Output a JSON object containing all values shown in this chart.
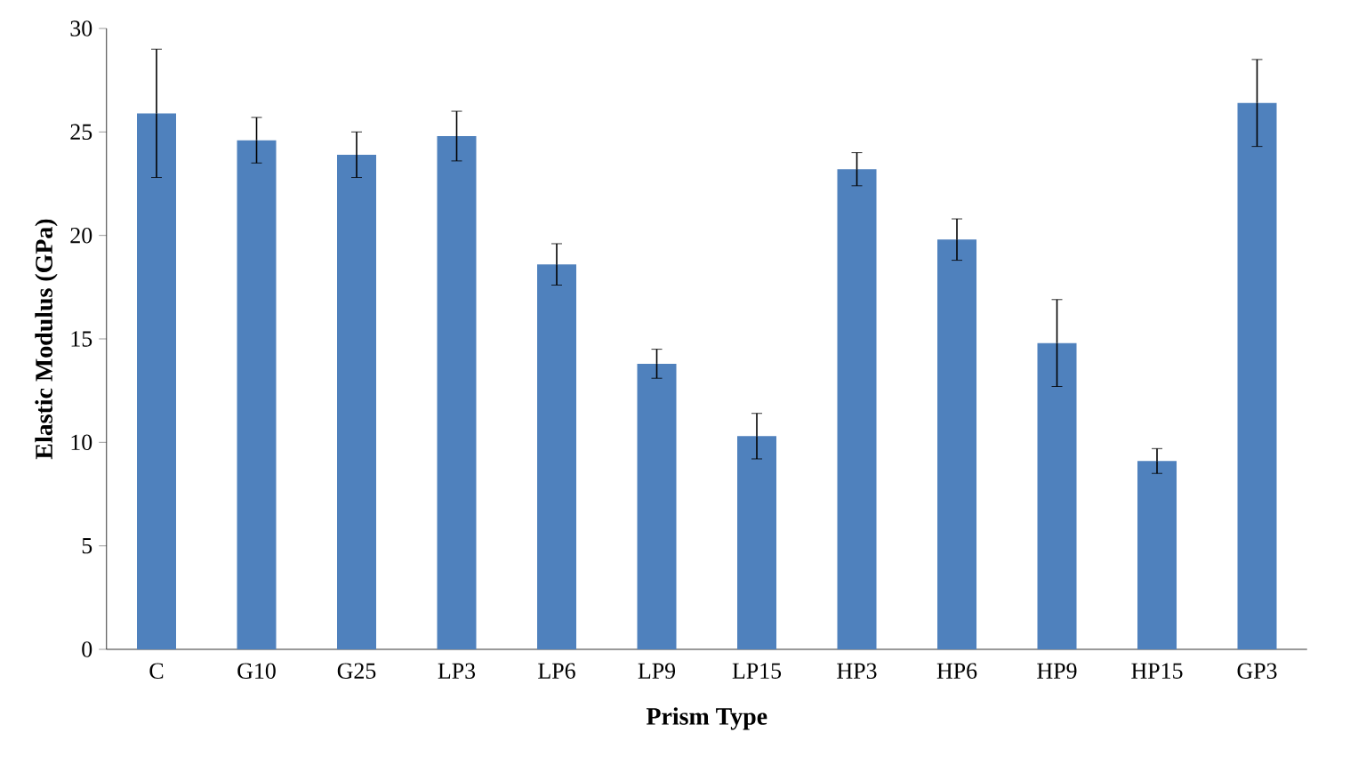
{
  "chart_data": {
    "type": "bar",
    "xlabel": "Prism Type",
    "ylabel": "Elastic Modulus (GPa)",
    "categories": [
      "C",
      "G10",
      "G25",
      "LP3",
      "LP6",
      "LP9",
      "LP15",
      "HP3",
      "HP6",
      "HP9",
      "HP15",
      "GP3"
    ],
    "values": [
      25.9,
      24.6,
      23.9,
      24.8,
      18.6,
      13.8,
      10.3,
      23.2,
      19.8,
      14.8,
      9.1,
      26.4
    ],
    "errors": [
      3.1,
      1.1,
      1.1,
      1.2,
      1.0,
      0.7,
      1.1,
      0.8,
      1.0,
      2.1,
      0.6,
      2.1
    ],
    "color": "#4f81bd",
    "ylim": [
      0,
      30
    ],
    "yticks": [
      0,
      5,
      10,
      15,
      20,
      25,
      30
    ],
    "grid": false
  }
}
